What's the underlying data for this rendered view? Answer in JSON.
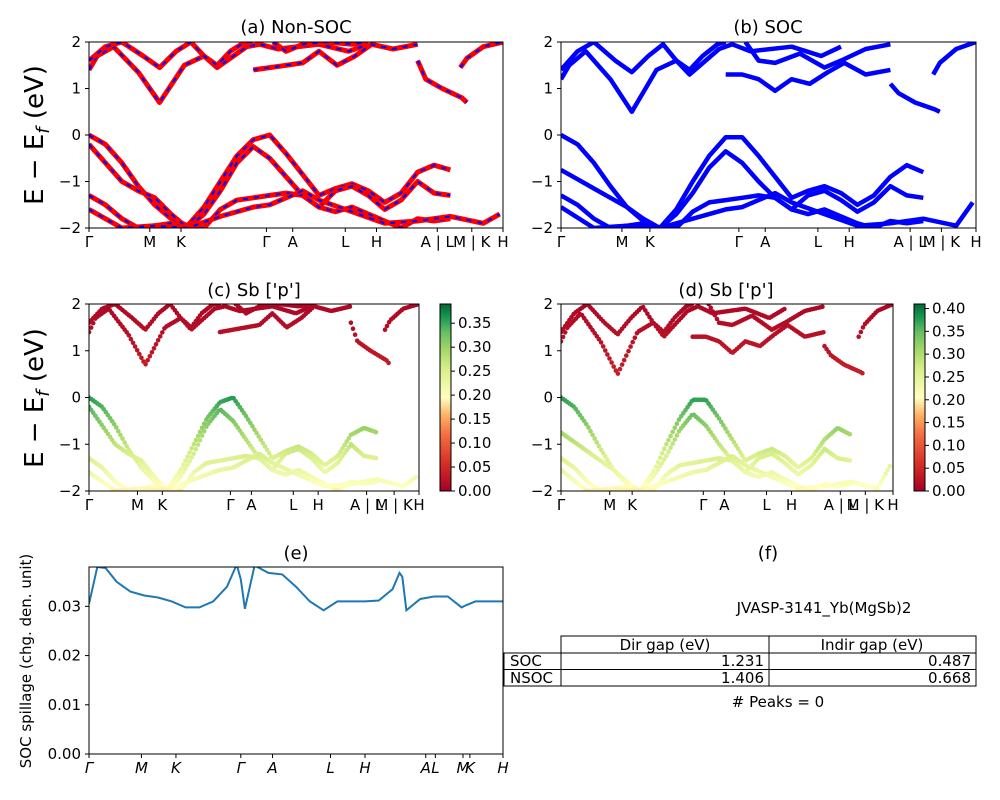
{
  "colors": {
    "nsoc_red": "#ff0000",
    "nsoc_blue": "#0000ff",
    "soc_blue": "#0000ff",
    "spillage_line": "#1f77b4",
    "cmap_low": "#a50026",
    "cmap_mid": "#ffffbf",
    "cmap_high": "#006837"
  },
  "band_axis": {
    "ylabel": "E − E_f (eV)",
    "ylim": [
      -2,
      2
    ],
    "yticks": [
      "2",
      "1",
      "0",
      "−1",
      "−2"
    ],
    "kpoint_labels": [
      "Γ",
      "M",
      "K",
      "Γ",
      "A",
      "L",
      "H",
      "A | L",
      "M | K",
      "H"
    ]
  },
  "chart_data": [
    {
      "id": "a",
      "type": "line",
      "title": "(a) Non-SOC",
      "ylabel": "E − E_f (eV)",
      "ylim": [
        -2,
        2
      ],
      "style": "red line with blue dashes",
      "series": [
        {
          "x": [
            0,
            0.5,
            1.5,
            3,
            4.3,
            5.8,
            7,
            7.8,
            9.6,
            10.4,
            11.5,
            14,
            15.8,
            17
          ],
          "y": [
            1.4,
            1.7,
            1.9,
            1.35,
            0.7,
            1.5,
            1.7,
            1.45,
            1.9,
            1.95,
            1.85,
            1.95,
            1.8,
            1.95
          ]
        },
        {
          "x": [
            0,
            1,
            2,
            3.3,
            4.3,
            5.3,
            6.2,
            7,
            7.8,
            8.6,
            9.5,
            10
          ],
          "y": [
            1.6,
            1.9,
            2,
            1.7,
            1.45,
            1.8,
            2,
            1.7,
            1.5,
            1.8,
            2,
            2
          ]
        },
        {
          "x": [
            10,
            11,
            12,
            13,
            14,
            15.1,
            16.2,
            17.2,
            18.5,
            20
          ],
          "y": [
            1.4,
            1.45,
            1.5,
            1.55,
            1.8,
            1.5,
            1.7,
            1.95,
            1.85,
            1.95
          ]
        },
        {
          "x": [
            11.2,
            12,
            13,
            14.5,
            16,
            17
          ],
          "y": [
            2,
            1.8,
            1.95,
            2,
            1.95,
            2
          ]
        },
        {
          "x": [
            20,
            20.5,
            21.5,
            22.7,
            23
          ],
          "y": [
            1.6,
            1.2,
            1,
            0.8,
            0.7
          ]
        },
        {
          "x": [
            22.6,
            23,
            24,
            25.2
          ],
          "y": [
            1.45,
            1.65,
            1.9,
            2
          ]
        },
        {
          "x": [
            0,
            1,
            2,
            3,
            4,
            5,
            6,
            7,
            8,
            9,
            10,
            11,
            12,
            13,
            14,
            15,
            16,
            17,
            18,
            19,
            20,
            21,
            22
          ],
          "y": [
            0,
            -0.2,
            -0.6,
            -1.1,
            -1.5,
            -1.8,
            -1.95,
            -1.55,
            -1,
            -0.45,
            -0.1,
            0,
            -0.4,
            -0.85,
            -1.3,
            -1.15,
            -1.05,
            -1.2,
            -1.45,
            -1.25,
            -0.8,
            -0.65,
            -0.75
          ]
        },
        {
          "x": [
            0,
            1,
            2,
            3,
            4,
            5,
            6,
            7,
            8,
            9,
            10,
            11,
            12,
            13,
            14,
            15,
            16,
            17,
            18,
            19,
            20,
            21,
            22
          ],
          "y": [
            -0.2,
            -0.6,
            -1,
            -1.2,
            -1.35,
            -1.7,
            -2,
            -1.7,
            -1.2,
            -0.6,
            -0.25,
            -0.5,
            -0.9,
            -1.3,
            -1.55,
            -1.2,
            -1.1,
            -1.3,
            -1.6,
            -1.4,
            -1,
            -1.25,
            -1.3
          ]
        },
        {
          "x": [
            0,
            1,
            2,
            3,
            4,
            5,
            6,
            7,
            8,
            9,
            10,
            11,
            12,
            13,
            14,
            15,
            16,
            17,
            18,
            19,
            20,
            21,
            22
          ],
          "y": [
            -1.3,
            -1.5,
            -1.8,
            -2,
            -1.95,
            -1.9,
            -2,
            -2,
            -1.6,
            -1.4,
            -1.35,
            -1.3,
            -1.25,
            -1.3,
            -1.55,
            -1.65,
            -1.55,
            -1.7,
            -1.85,
            -2,
            -1.8,
            -1.85,
            -1.8
          ]
        },
        {
          "x": [
            0,
            2,
            4,
            6,
            8,
            10,
            11,
            12,
            13,
            14,
            16,
            18,
            20,
            22,
            24,
            25
          ],
          "y": [
            -1.6,
            -2,
            -1.95,
            -2,
            -1.75,
            -1.55,
            -1.5,
            -1.35,
            -1.2,
            -1.4,
            -1.65,
            -1.9,
            -1.85,
            -1.75,
            -1.9,
            -1.7
          ]
        }
      ]
    },
    {
      "id": "b",
      "type": "line",
      "title": "(b) SOC",
      "ylim": [
        -2,
        2
      ],
      "style": "solid blue",
      "series": [
        {
          "x": [
            0,
            0.5,
            1.5,
            3,
            4.3,
            5.8,
            7,
            7.8,
            9.6,
            10.4,
            11.5,
            14,
            15.8,
            17
          ],
          "y": [
            1.2,
            1.5,
            1.8,
            1.2,
            0.5,
            1.4,
            1.6,
            1.3,
            1.85,
            1.95,
            1.8,
            1.9,
            1.7,
            1.9
          ]
        },
        {
          "x": [
            0,
            1,
            2,
            3.3,
            4.3,
            5.3,
            6.2,
            7,
            7.8,
            8.6,
            9.5,
            10
          ],
          "y": [
            1.4,
            1.8,
            2,
            1.6,
            1.35,
            1.7,
            1.95,
            1.6,
            1.4,
            1.7,
            1.95,
            2
          ]
        },
        {
          "x": [
            10,
            11,
            12,
            13,
            14,
            15.1,
            16.2,
            17.2,
            18.5,
            20
          ],
          "y": [
            1.3,
            1.3,
            1.2,
            0.95,
            1.2,
            1.1,
            1.35,
            1.55,
            1.3,
            1.4
          ]
        },
        {
          "x": [
            11.2,
            12,
            13,
            14.5,
            16,
            17,
            18.5,
            20
          ],
          "y": [
            2,
            1.6,
            1.55,
            1.75,
            1.45,
            1.6,
            1.85,
            1.95
          ]
        },
        {
          "x": [
            20,
            20.5,
            21.5,
            22.7,
            23
          ],
          "y": [
            1.1,
            0.9,
            0.7,
            0.55,
            0.5
          ]
        },
        {
          "x": [
            22.6,
            23,
            24,
            25.2
          ],
          "y": [
            1.3,
            1.55,
            1.85,
            2
          ]
        },
        {
          "x": [
            0,
            1,
            2,
            3,
            4,
            5,
            6,
            7,
            8,
            9,
            10,
            11,
            12,
            13,
            14,
            15,
            16,
            17,
            18,
            19,
            20,
            21,
            22
          ],
          "y": [
            0,
            -0.2,
            -0.6,
            -1.1,
            -1.55,
            -1.85,
            -2,
            -1.6,
            -1,
            -0.45,
            -0.05,
            -0.05,
            -0.45,
            -0.9,
            -1.35,
            -1.2,
            -1.1,
            -1.25,
            -1.5,
            -1.3,
            -0.9,
            -0.65,
            -0.8
          ]
        },
        {
          "x": [
            0,
            1,
            2,
            3,
            4,
            5,
            6,
            7,
            8,
            9,
            10,
            11,
            12,
            13,
            14,
            15,
            16,
            17,
            18,
            19,
            20,
            21,
            22
          ],
          "y": [
            -0.75,
            -0.95,
            -1.15,
            -1.35,
            -1.55,
            -1.8,
            -2,
            -1.7,
            -1.25,
            -0.7,
            -0.35,
            -0.6,
            -1,
            -1.35,
            -1.6,
            -1.3,
            -1.2,
            -1.4,
            -1.65,
            -1.45,
            -1.1,
            -1.3,
            -1.35
          ]
        },
        {
          "x": [
            0,
            1,
            2,
            3,
            4,
            5,
            6,
            7,
            8,
            9,
            10,
            11,
            12,
            13,
            14,
            15,
            16,
            17,
            18,
            19,
            20,
            21,
            22
          ],
          "y": [
            -1.3,
            -1.5,
            -1.8,
            -2,
            -1.95,
            -1.9,
            -2,
            -2,
            -1.65,
            -1.45,
            -1.4,
            -1.35,
            -1.3,
            -1.35,
            -1.6,
            -1.7,
            -1.6,
            -1.75,
            -1.9,
            -2,
            -1.85,
            -1.9,
            -1.85
          ]
        },
        {
          "x": [
            0,
            2,
            4,
            6,
            8,
            10,
            11,
            12,
            13,
            14,
            16,
            18,
            20,
            22,
            24,
            25
          ],
          "y": [
            -1.55,
            -2,
            -1.95,
            -2,
            -1.8,
            -1.6,
            -1.55,
            -1.4,
            -1.25,
            -1.45,
            -1.7,
            -1.95,
            -1.9,
            -1.8,
            -1.95,
            -1.45
          ]
        }
      ]
    },
    {
      "id": "c",
      "type": "scatter",
      "title": "(c)  Sb ['p']",
      "ylabel": "E − E_f (eV)",
      "ylim": [
        -2,
        2
      ],
      "colorbar": {
        "range": [
          0,
          0.39
        ],
        "ticks": [
          "0.00",
          "0.05",
          "0.10",
          "0.15",
          "0.20",
          "0.25",
          "0.30",
          "0.35"
        ]
      },
      "note": "points colored by Sb p-projection weight; valence near Γ ≈ 0.3–0.39, conduction ≈ 0.0–0.05"
    },
    {
      "id": "d",
      "type": "scatter",
      "title": "(d) Sb ['p']",
      "ylim": [
        -2,
        2
      ],
      "colorbar": {
        "range": [
          0,
          0.41
        ],
        "ticks": [
          "0.00",
          "0.05",
          "0.10",
          "0.15",
          "0.20",
          "0.25",
          "0.30",
          "0.35",
          "0.40"
        ]
      },
      "note": "points colored by Sb p-projection weight (SOC)"
    },
    {
      "id": "e",
      "type": "line",
      "title": "(e)",
      "ylabel": "SOC spillage (chg. den. unit)",
      "ylim": [
        0,
        0.038
      ],
      "yticks": [
        "0.00",
        "0.01",
        "0.02",
        "0.03"
      ],
      "xticklabels": [
        "Γ",
        "M",
        "K",
        "Γ",
        "A",
        "L",
        "H",
        "A",
        "L",
        "M",
        "K",
        "H"
      ],
      "series": [
        {
          "name": "",
          "x": [
            0,
            0.6,
            1.2,
            2,
            3,
            4,
            5,
            6,
            7,
            8,
            9,
            10,
            10.7,
            11,
            11.3,
            12,
            13,
            14,
            15,
            16,
            17,
            18,
            19,
            20,
            21,
            22,
            22.5,
            22.7,
            23,
            24,
            25,
            26,
            27,
            27.3,
            28,
            29,
            30
          ],
          "y": [
            0.0305,
            0.038,
            0.0378,
            0.035,
            0.033,
            0.0322,
            0.0318,
            0.031,
            0.0298,
            0.0298,
            0.031,
            0.034,
            0.0385,
            0.0355,
            0.0295,
            0.0383,
            0.0368,
            0.0365,
            0.034,
            0.031,
            0.0292,
            0.031,
            0.031,
            0.031,
            0.0312,
            0.0335,
            0.0368,
            0.036,
            0.0292,
            0.0315,
            0.032,
            0.032,
            0.0298,
            0.0302,
            0.031,
            0.031,
            0.031
          ]
        }
      ]
    }
  ],
  "panel_f": {
    "title": "(f)",
    "material": "JVASP-3141_Yb(MgSb)2",
    "table": {
      "headers": [
        "Dir gap (eV)",
        "Indir gap (eV)"
      ],
      "rows": [
        {
          "label": "SOC",
          "dir": "1.231",
          "indir": "0.487"
        },
        {
          "label": "NSOC",
          "dir": "1.406",
          "indir": "0.668"
        }
      ]
    },
    "peaks": "# Peaks = 0"
  }
}
